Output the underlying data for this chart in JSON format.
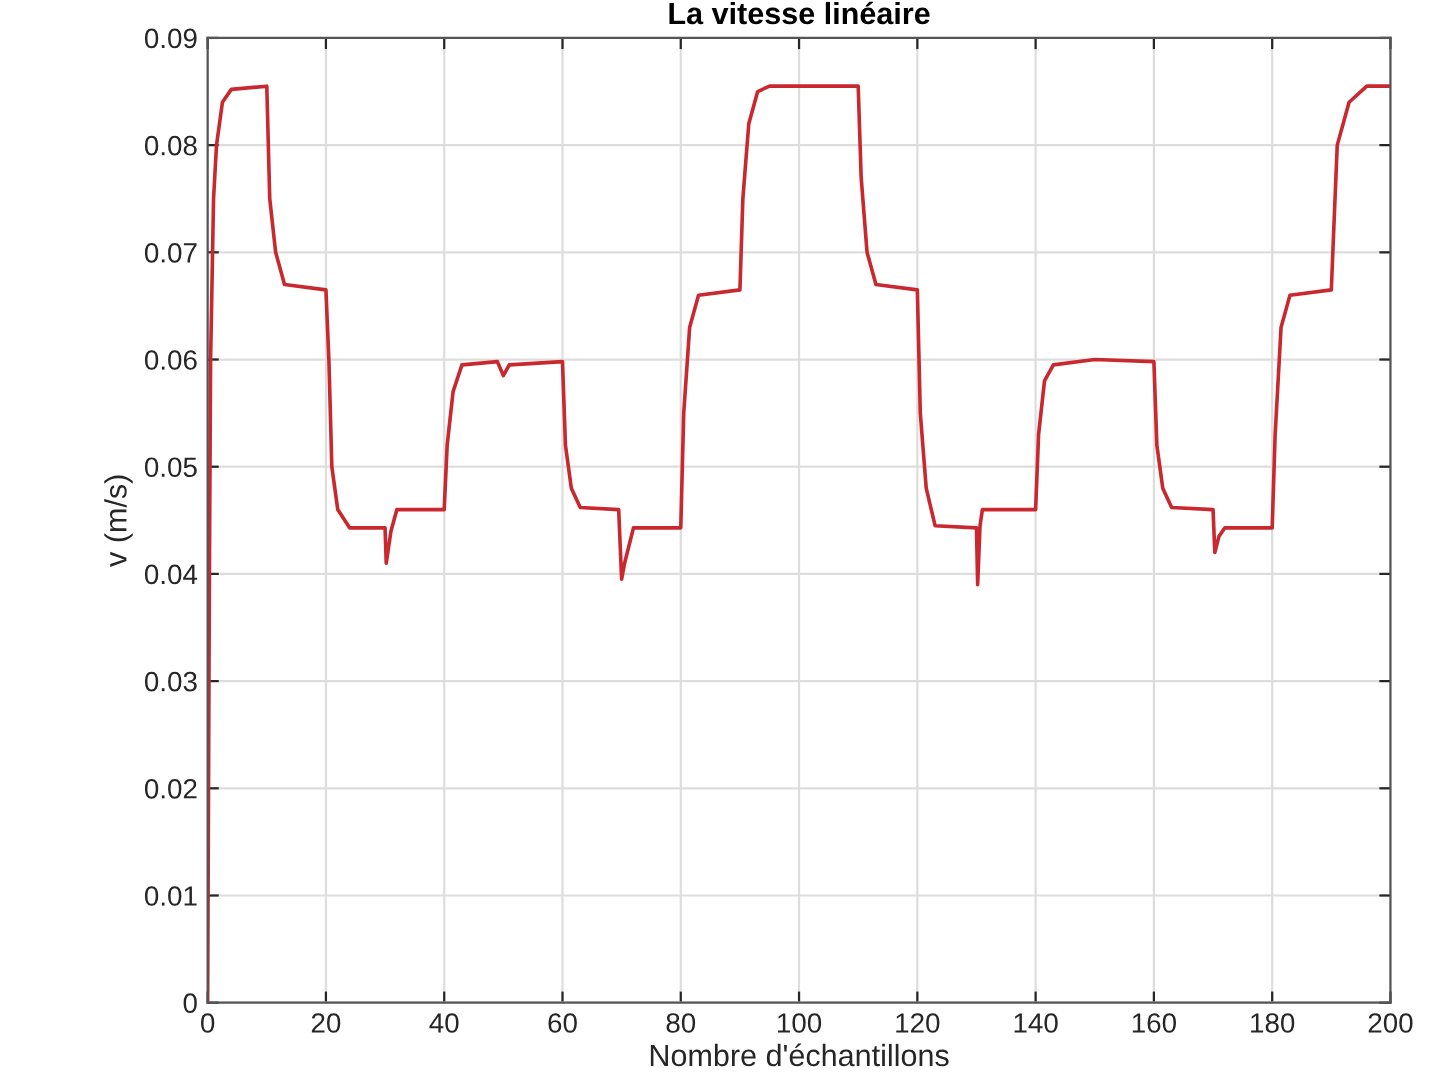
{
  "chart_data": {
    "type": "line",
    "title": "La vitesse linéaire",
    "xlabel": "Nombre d'échantillons",
    "ylabel": "v (m/s)",
    "x": [
      0,
      0.3,
      0.5,
      1,
      1.5,
      2.5,
      4,
      10,
      10.5,
      11.5,
      13,
      20,
      20.5,
      21,
      22,
      24,
      30,
      30.2,
      31,
      32,
      40,
      40.5,
      41.5,
      43,
      49,
      50,
      51,
      60,
      60.5,
      61.5,
      63,
      69.5,
      70,
      70.5,
      72,
      80,
      80.5,
      81.5,
      83,
      90,
      90.5,
      91.5,
      93,
      95,
      110,
      110.5,
      111.5,
      113,
      120,
      120.5,
      121.5,
      123,
      130,
      130.2,
      130.6,
      131,
      140,
      140.5,
      141.5,
      143,
      150,
      160,
      160.5,
      161.5,
      163,
      170,
      170.3,
      171,
      172,
      180,
      180.5,
      181.5,
      183,
      190,
      190.4,
      191,
      193,
      196,
      200
    ],
    "series": [
      {
        "color": "#c8282e",
        "values": [
          0,
          0.04,
          0.06,
          0.075,
          0.08,
          0.084,
          0.0852,
          0.0855,
          0.075,
          0.07,
          0.067,
          0.0665,
          0.06,
          0.05,
          0.046,
          0.0443,
          0.0443,
          0.041,
          0.044,
          0.046,
          0.046,
          0.052,
          0.057,
          0.0595,
          0.0598,
          0.0585,
          0.0595,
          0.0598,
          0.052,
          0.048,
          0.0462,
          0.046,
          0.0395,
          0.041,
          0.0443,
          0.0443,
          0.055,
          0.063,
          0.066,
          0.0665,
          0.075,
          0.082,
          0.085,
          0.0855,
          0.0855,
          0.077,
          0.07,
          0.067,
          0.0665,
          0.055,
          0.048,
          0.0445,
          0.0443,
          0.039,
          0.0445,
          0.046,
          0.046,
          0.053,
          0.058,
          0.0595,
          0.06,
          0.0598,
          0.052,
          0.048,
          0.0462,
          0.046,
          0.042,
          0.0435,
          0.0443,
          0.0443,
          0.053,
          0.063,
          0.066,
          0.0665,
          0.072,
          0.08,
          0.084,
          0.0855,
          0.0855
        ]
      }
    ],
    "xlim": [
      0,
      200
    ],
    "ylim": [
      0,
      0.09
    ],
    "xticks": [
      0,
      20,
      40,
      60,
      80,
      100,
      120,
      140,
      160,
      180,
      200
    ],
    "yticks": [
      0,
      0.01,
      0.02,
      0.03,
      0.04,
      0.05,
      0.06,
      0.07,
      0.08,
      0.09
    ],
    "grid": true
  }
}
